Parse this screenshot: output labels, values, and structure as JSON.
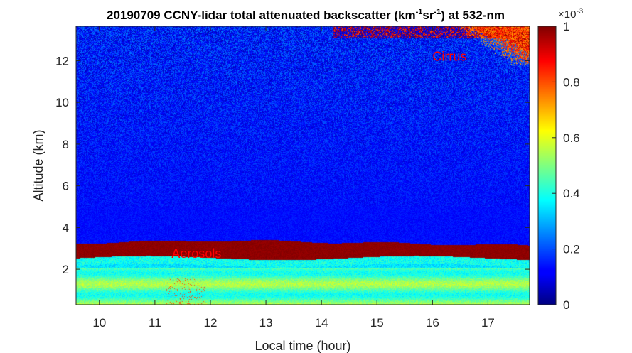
{
  "chart_data": {
    "type": "heatmap",
    "title": {
      "main": "20190709 CCNY-lidar total attenuated backscatter (km",
      "exp1": "-1",
      "mid": "sr",
      "exp2": "-1",
      "end": ") at 532-nm"
    },
    "xlabel": "Local time (hour)",
    "ylabel": "Altitude (km)",
    "xlim": [
      9.58,
      17.75
    ],
    "ylim": [
      0.3,
      13.65
    ],
    "xticks": [
      10,
      11,
      12,
      13,
      14,
      15,
      16,
      17
    ],
    "yticks": [
      2,
      4,
      6,
      8,
      10,
      12
    ],
    "colorbar": {
      "colormap": "jet",
      "clim": [
        0,
        1
      ],
      "ticks": [
        0,
        0.2,
        0.4,
        0.6,
        0.8,
        1
      ],
      "tick_labels": [
        "0",
        "0.2",
        "0.4",
        "0.6",
        "0.8",
        "1"
      ],
      "scale_base": "×10",
      "scale_exp": "-3"
    },
    "annotations": [
      {
        "text": "Aerosols",
        "x": 11.3,
        "y": 2.75,
        "color": "#ff0000"
      },
      {
        "text": "Cirrus",
        "x": 16.0,
        "y": 12.2,
        "color": "#ff0000"
      }
    ],
    "features": {
      "aerosol_layer_km": [
        2.55,
        3.4
      ],
      "cirrus_region": {
        "x": [
          16.2,
          17.75
        ],
        "y": [
          11.8,
          13.65
        ]
      },
      "boundary_layer_km": [
        0.3,
        2.5
      ]
    }
  }
}
